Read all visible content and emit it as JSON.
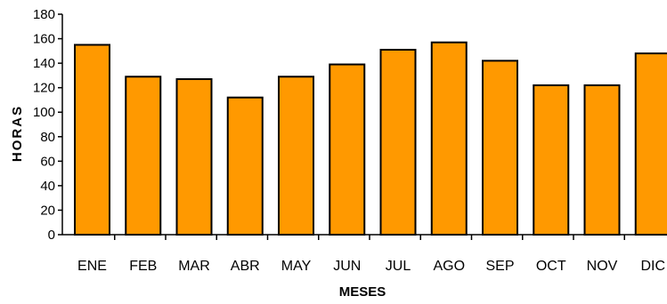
{
  "chart_data": {
    "type": "bar",
    "categories": [
      "ENE",
      "FEB",
      "MAR",
      "ABR",
      "MAY",
      "JUN",
      "JUL",
      "AGO",
      "SEP",
      "OCT",
      "NOV",
      "DIC"
    ],
    "values": [
      155,
      129,
      127,
      112,
      129,
      139,
      151,
      157,
      142,
      122,
      122,
      148
    ],
    "title": "",
    "xlabel": "MESES",
    "ylabel": "HORAS",
    "ylim": [
      0,
      180
    ],
    "yticks": [
      0,
      20,
      40,
      60,
      80,
      100,
      120,
      140,
      160,
      180
    ],
    "grid": false,
    "legend": "none",
    "colors": {
      "bar_fill": "#FF9900",
      "bar_stroke": "#000000",
      "axis": "#000000"
    }
  }
}
